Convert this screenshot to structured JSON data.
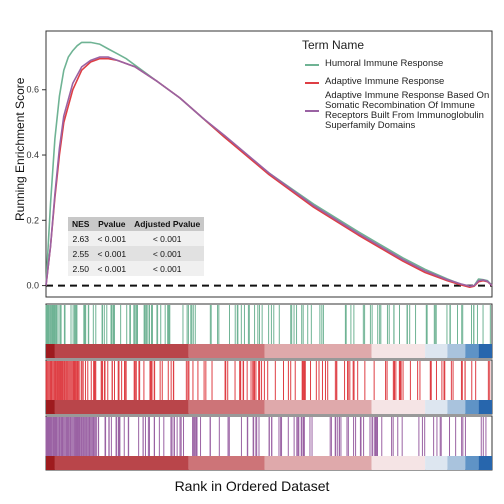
{
  "chart_data": {
    "type": "line",
    "title": "",
    "xlabel": "Rank in Ordered Dataset",
    "ylabel": "Running Enrichment Score",
    "yticks": [
      0.0,
      0.2,
      0.4,
      0.6
    ],
    "ytick_labels": [
      "0.0",
      "0.2",
      "0.4",
      "0.6"
    ],
    "ylim": [
      -0.035,
      0.78
    ],
    "xlim": [
      0,
      1
    ],
    "legend": {
      "title": "Term Name",
      "placement": "top-right"
    },
    "series": [
      {
        "name": "Humoral Immune Response",
        "color": "#6fb394",
        "x": [
          0,
          0.01,
          0.02,
          0.03,
          0.04,
          0.05,
          0.06,
          0.07,
          0.08,
          0.1,
          0.12,
          0.14,
          0.16,
          0.18,
          0.2,
          0.25,
          0.3,
          0.35,
          0.4,
          0.5,
          0.6,
          0.7,
          0.8,
          0.85,
          0.9,
          0.93,
          0.95,
          0.96,
          0.97,
          0.98,
          0.99,
          1.0
        ],
        "y": [
          0,
          0.25,
          0.45,
          0.58,
          0.66,
          0.7,
          0.72,
          0.735,
          0.745,
          0.745,
          0.74,
          0.725,
          0.71,
          0.695,
          0.675,
          0.625,
          0.575,
          0.515,
          0.455,
          0.345,
          0.25,
          0.165,
          0.085,
          0.05,
          0.02,
          0.004,
          -0.003,
          0.0,
          0.02,
          0.018,
          0.015,
          0.0
        ]
      },
      {
        "name": "Adaptive Immune Response",
        "color": "#de3e44",
        "x": [
          0,
          0.01,
          0.02,
          0.03,
          0.04,
          0.06,
          0.08,
          0.1,
          0.12,
          0.14,
          0.16,
          0.18,
          0.2,
          0.25,
          0.3,
          0.35,
          0.4,
          0.5,
          0.6,
          0.7,
          0.8,
          0.85,
          0.9,
          0.93,
          0.95,
          0.96,
          0.97,
          0.98,
          0.99,
          1.0
        ],
        "y": [
          0,
          0.12,
          0.27,
          0.4,
          0.5,
          0.6,
          0.66,
          0.685,
          0.695,
          0.695,
          0.69,
          0.68,
          0.67,
          0.625,
          0.575,
          0.515,
          0.455,
          0.34,
          0.24,
          0.155,
          0.075,
          0.04,
          0.015,
          0.002,
          -0.005,
          -0.002,
          0.012,
          0.015,
          0.012,
          0.0
        ]
      },
      {
        "name": "Adaptive Immune Response Based On Somatic Recombination Of Immune Receptors Built From Immunoglobulin Superfamily Domains",
        "color": "#9a62a3",
        "x": [
          0,
          0.01,
          0.02,
          0.03,
          0.04,
          0.06,
          0.08,
          0.1,
          0.12,
          0.14,
          0.16,
          0.18,
          0.2,
          0.25,
          0.3,
          0.35,
          0.4,
          0.5,
          0.6,
          0.7,
          0.8,
          0.85,
          0.9,
          0.93,
          0.95,
          0.96,
          0.97,
          0.98,
          0.99,
          1.0
        ],
        "y": [
          0,
          0.12,
          0.28,
          0.42,
          0.52,
          0.62,
          0.67,
          0.69,
          0.7,
          0.7,
          0.69,
          0.68,
          0.67,
          0.625,
          0.575,
          0.515,
          0.46,
          0.345,
          0.245,
          0.16,
          0.08,
          0.045,
          0.018,
          0.005,
          -0.002,
          0.0,
          0.015,
          0.017,
          0.013,
          0.0
        ]
      }
    ],
    "stats_table": {
      "headers": [
        "NES",
        "Pvalue",
        "Adjusted Pvalue"
      ],
      "rows": [
        [
          "2.63",
          "< 0.001",
          "< 0.001"
        ],
        [
          "2.55",
          "< 0.001",
          "< 0.001"
        ],
        [
          "2.50",
          "< 0.001",
          "< 0.001"
        ]
      ]
    },
    "rank_heatmap_colors": [
      "#9e1b1e",
      "#b9454a",
      "#cd7478",
      "#dfa9ab",
      "#f5e4e5",
      "#dde6f0",
      "#a9c3dd",
      "#5f93c6",
      "#2766ad"
    ]
  }
}
